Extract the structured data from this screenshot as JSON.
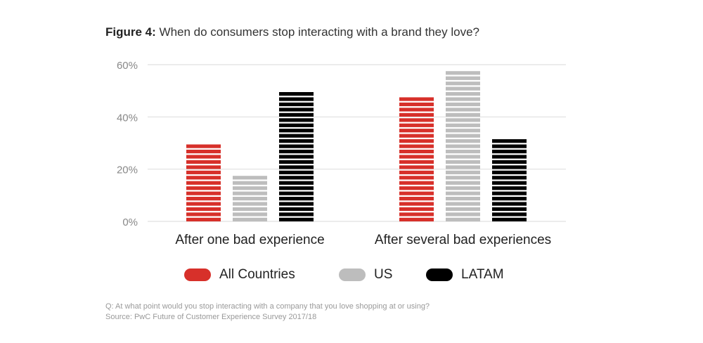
{
  "title": {
    "prefix": "Figure 4:",
    "text": "When do consumers stop interacting with a brand they love?"
  },
  "chart_data": {
    "type": "bar",
    "title": "Figure 4: When do consumers stop interacting with a brand they love?",
    "categories": [
      "After one bad experience",
      "After several bad experiences"
    ],
    "series": [
      {
        "name": "All Countries",
        "color": "#d7302a",
        "values": [
          30,
          48
        ]
      },
      {
        "name": "US",
        "color": "#bdbdbd",
        "values": [
          18,
          58
        ]
      },
      {
        "name": "LATAM",
        "color": "#000000",
        "values": [
          50,
          32
        ]
      }
    ],
    "yticks": [
      "0%",
      "20%",
      "40%",
      "60%"
    ],
    "ytick_values": [
      0,
      20,
      40,
      60
    ],
    "ylim": [
      0,
      60
    ],
    "xlabel": "",
    "ylabel": "",
    "grid": true,
    "legend": "bottom"
  },
  "notes": {
    "question": "Q: At what point would you stop interacting with a company that you love shopping at or using?",
    "source": "Source: PwC Future of Customer Experience Survey 2017/18"
  }
}
